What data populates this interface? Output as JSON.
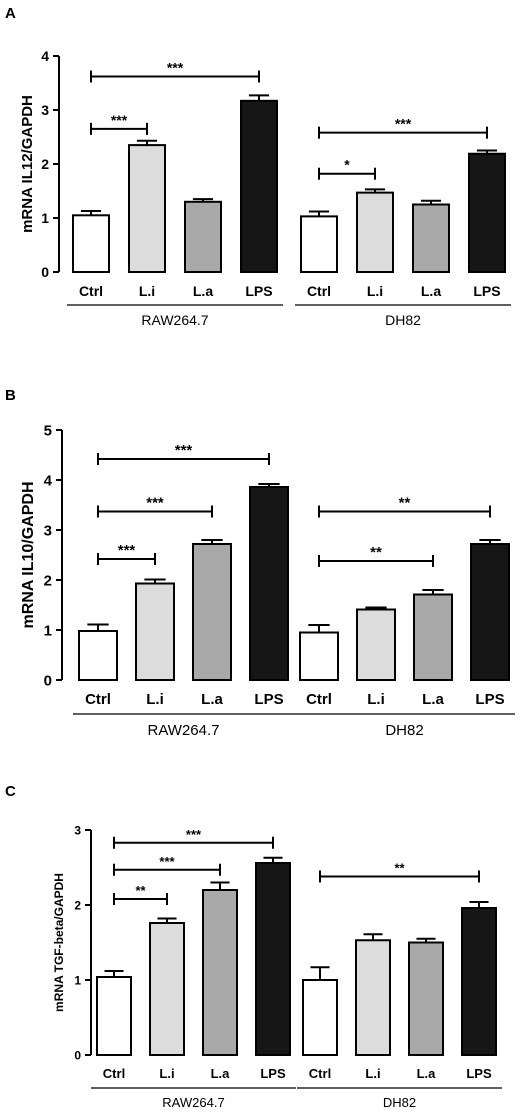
{
  "chart_data": [
    {
      "type": "bar",
      "panel": "A",
      "ylabel": "mRNA IL12/GAPDH",
      "ylim": [
        0,
        4
      ],
      "yticks": [
        "0",
        "1",
        "2",
        "3",
        "4"
      ],
      "colors": [
        "#ffffff",
        "#dcdcdc",
        "#a9a9a9",
        "#161616"
      ],
      "groups": [
        {
          "name": "RAW264.7",
          "categories": [
            "Ctrl",
            "L.i",
            "L.a",
            "LPS"
          ],
          "values": [
            1.05,
            2.35,
            1.3,
            3.17
          ],
          "errors": [
            0.08,
            0.08,
            0.05,
            0.1
          ],
          "significance": [
            {
              "from": 0,
              "to": 1,
              "y": 2.65,
              "label": "***"
            },
            {
              "from": 0,
              "to": 3,
              "y": 3.62,
              "label": "***"
            }
          ]
        },
        {
          "name": "DH82",
          "categories": [
            "Ctrl",
            "L.i",
            "L.a",
            "LPS"
          ],
          "values": [
            1.03,
            1.47,
            1.25,
            2.19
          ],
          "errors": [
            0.09,
            0.06,
            0.07,
            0.06
          ],
          "significance": [
            {
              "from": 0,
              "to": 1,
              "y": 1.82,
              "label": "*"
            },
            {
              "from": 0,
              "to": 3,
              "y": 2.58,
              "label": "***"
            }
          ]
        }
      ]
    },
    {
      "type": "bar",
      "panel": "B",
      "ylabel": "mRNA IL10/GAPDH",
      "ylim": [
        0,
        5
      ],
      "yticks": [
        "0",
        "1",
        "2",
        "3",
        "4",
        "5"
      ],
      "colors": [
        "#ffffff",
        "#dcdcdc",
        "#a9a9a9",
        "#161616"
      ],
      "groups": [
        {
          "name": "RAW264.7",
          "categories": [
            "Ctrl",
            "L.i",
            "L.a",
            "LPS"
          ],
          "values": [
            0.98,
            1.93,
            2.72,
            3.86
          ],
          "errors": [
            0.13,
            0.08,
            0.08,
            0.06
          ],
          "significance": [
            {
              "from": 0,
              "to": 1,
              "y": 2.42,
              "label": "***"
            },
            {
              "from": 0,
              "to": 2,
              "y": 3.37,
              "label": "***"
            },
            {
              "from": 0,
              "to": 3,
              "y": 4.42,
              "label": "***"
            }
          ]
        },
        {
          "name": "DH82",
          "categories": [
            "Ctrl",
            "L.i",
            "L.a",
            "LPS"
          ],
          "values": [
            0.95,
            1.41,
            1.71,
            2.72
          ],
          "errors": [
            0.15,
            0.04,
            0.09,
            0.08
          ],
          "significance": [
            {
              "from": 0,
              "to": 2,
              "y": 2.38,
              "label": "**"
            },
            {
              "from": 0,
              "to": 3,
              "y": 3.37,
              "label": "**"
            }
          ]
        }
      ]
    },
    {
      "type": "bar",
      "panel": "C",
      "ylabel": "mRNA TGF-beta/GAPDH",
      "ylim": [
        0,
        3
      ],
      "yticks": [
        "0",
        "1",
        "2",
        "3"
      ],
      "colors": [
        "#ffffff",
        "#dcdcdc",
        "#a9a9a9",
        "#161616"
      ],
      "groups": [
        {
          "name": "RAW264.7",
          "categories": [
            "Ctrl",
            "L.i",
            "L.a",
            "LPS"
          ],
          "values": [
            1.04,
            1.76,
            2.2,
            2.56
          ],
          "errors": [
            0.08,
            0.06,
            0.1,
            0.07
          ],
          "significance": [
            {
              "from": 0,
              "to": 1,
              "y": 2.08,
              "label": "**"
            },
            {
              "from": 0,
              "to": 2,
              "y": 2.47,
              "label": "***"
            },
            {
              "from": 0,
              "to": 3,
              "y": 2.83,
              "label": "***"
            }
          ]
        },
        {
          "name": "DH82",
          "categories": [
            "Ctrl",
            "L.i",
            "L.a",
            "LPS"
          ],
          "values": [
            1.0,
            1.53,
            1.5,
            1.96
          ],
          "errors": [
            0.17,
            0.08,
            0.05,
            0.08
          ],
          "significance": [
            {
              "from": 0,
              "to": 3,
              "y": 2.38,
              "label": "**"
            }
          ]
        }
      ]
    }
  ]
}
